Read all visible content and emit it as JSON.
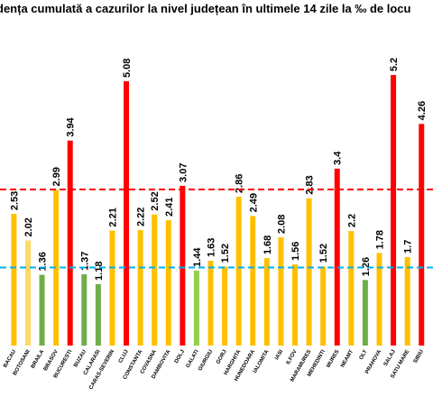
{
  "chart_data": {
    "type": "bar",
    "title": "dența cumulată a cazurilor la nivel județean în ultimele 14 zile la ‰ de locu",
    "categories": [
      "BACAU",
      "BOTOSANI",
      "BRAILA",
      "BRASOV",
      "BUCURESTI",
      "BUZAU",
      "CALARASI",
      "CARAS-SEVERIN",
      "CLUJ",
      "CONSTANTA",
      "COVASNA",
      "DAMBOVITA",
      "DOLJ",
      "GALATI",
      "GIURGIU",
      "GORJ",
      "HARGHITA",
      "HUNEDOARA",
      "IALOMITA",
      "IASI",
      "ILFOV",
      "MARAMURES",
      "MEHEDINTI",
      "MURES",
      "NEAMT",
      "OLT",
      "PRAHOVA",
      "SALAJ",
      "SATU MARE",
      "SIBIU"
    ],
    "values": [
      2.53,
      2.02,
      1.36,
      2.99,
      3.94,
      1.37,
      1.18,
      2.21,
      5.08,
      2.22,
      2.52,
      2.41,
      3.07,
      1.44,
      1.63,
      1.52,
      2.86,
      2.49,
      1.68,
      2.08,
      1.56,
      2.83,
      1.52,
      3.4,
      2.2,
      1.26,
      1.78,
      5.2,
      1.7,
      4.26
    ],
    "colors": [
      "#ffc000",
      "#ffd966",
      "#70ad47",
      "#ffc000",
      "#ff0000",
      "#70ad47",
      "#70ad47",
      "#ffc000",
      "#ff0000",
      "#ffc000",
      "#ffc000",
      "#ffc000",
      "#ff0000",
      "#92d050",
      "#ffc000",
      "#ffc000",
      "#ffc000",
      "#ffc000",
      "#ffc000",
      "#ffc000",
      "#ffc000",
      "#ffc000",
      "#ffc000",
      "#ff0000",
      "#ffc000",
      "#70ad47",
      "#ffc000",
      "#ff0000",
      "#ffc000",
      "#ff0000"
    ],
    "reference_lines": [
      {
        "value": 3,
        "color": "#ff0000"
      },
      {
        "value": 1.5,
        "color": "#00b0f0"
      }
    ],
    "ylim": [
      0,
      6
    ]
  }
}
